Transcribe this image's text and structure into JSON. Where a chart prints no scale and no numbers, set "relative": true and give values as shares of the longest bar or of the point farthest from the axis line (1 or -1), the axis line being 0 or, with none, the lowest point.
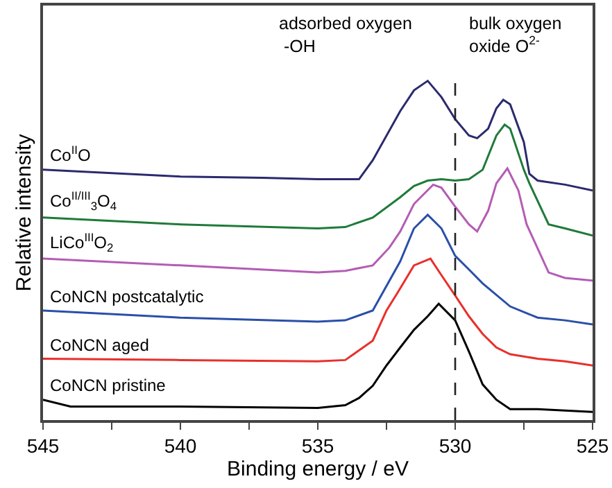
{
  "chart_data": {
    "type": "line",
    "relative": true,
    "xlabel": "Binding energy / eV",
    "ylabel": "Relative intensity",
    "xlim": [
      545,
      525
    ],
    "xticks": [
      545,
      {
        "value": 542.5,
        "label": null
      },
      540,
      {
        "value": 537.5,
        "label": null
      },
      535,
      {
        "value": 532.5,
        "label": null
      },
      530,
      {
        "value": 527.5,
        "label": null
      },
      525
    ],
    "legend": false,
    "marker": "none",
    "line_style": "solid",
    "annotations": [
      "adsorbed oxygen\n -OH",
      "bulk oxygen\noxide O$^{2-}$"
    ],
    "ref_lines": [
      {
        "axis": "x",
        "value": 530,
        "label": null,
        "color": "#222222",
        "line_style": "dashed"
      }
    ],
    "series": [
      {
        "name": "Co$^{II}$O",
        "color": "#2b2a6e",
        "x": [
          545,
          543,
          540,
          537,
          535,
          534,
          533.5,
          533,
          532,
          531.5,
          531,
          530.5,
          530,
          529.5,
          529.2,
          528.8,
          528.5,
          528.25,
          528,
          527.5,
          527.3,
          527,
          526,
          525
        ],
        "values": [
          0.738,
          0.73,
          0.718,
          0.714,
          0.71,
          0.71,
          0.71,
          0.766,
          0.911,
          0.972,
          1.0,
          0.952,
          0.887,
          0.839,
          0.831,
          0.859,
          0.919,
          0.944,
          0.931,
          0.819,
          0.726,
          0.706,
          0.694,
          0.677
        ]
      },
      {
        "name": "Co$^{II/III}$$_{3}$O$_{4}$",
        "color": "#1f7a3a",
        "x": [
          545,
          540,
          535,
          534,
          533,
          532,
          531.5,
          531,
          530.5,
          530,
          529.5,
          529,
          528.5,
          528.2,
          528,
          527.5,
          527.3,
          526.6,
          526,
          525
        ],
        "values": [
          0.597,
          0.577,
          0.565,
          0.569,
          0.597,
          0.657,
          0.69,
          0.706,
          0.71,
          0.706,
          0.71,
          0.738,
          0.839,
          0.871,
          0.859,
          0.738,
          0.698,
          0.577,
          0.565,
          0.544
        ]
      },
      {
        "name": "LiCo$^{III}$O$_{2}$",
        "color": "#b45cb4",
        "x": [
          545,
          540,
          535,
          534,
          533,
          532.4,
          532,
          531.5,
          530.8,
          530.5,
          530,
          529.5,
          529.2,
          528.8,
          528.5,
          528.1,
          527.7,
          527.4,
          527.1,
          526.6,
          526,
          525
        ],
        "values": [
          0.476,
          0.456,
          0.435,
          0.44,
          0.456,
          0.508,
          0.556,
          0.637,
          0.694,
          0.685,
          0.629,
          0.577,
          0.556,
          0.617,
          0.698,
          0.742,
          0.677,
          0.577,
          0.524,
          0.435,
          0.419,
          0.411
        ]
      },
      {
        "name": "CoNCN postcatalytic",
        "color": "#2a4fa8",
        "x": [
          545,
          540,
          535,
          534,
          533,
          532,
          531.5,
          531,
          530.5,
          530,
          529.5,
          529,
          528,
          527,
          526,
          525
        ],
        "values": [
          0.323,
          0.302,
          0.29,
          0.294,
          0.323,
          0.468,
          0.565,
          0.605,
          0.565,
          0.484,
          0.444,
          0.403,
          0.335,
          0.302,
          0.294,
          0.282
        ]
      },
      {
        "name": "CoNCN aged",
        "color": "#e8302a",
        "x": [
          545,
          540,
          535,
          534,
          533,
          532.5,
          532.1,
          531.5,
          530.9,
          530.5,
          530,
          529.5,
          529,
          528.5,
          528,
          527,
          526,
          525
        ],
        "values": [
          0.181,
          0.177,
          0.173,
          0.177,
          0.234,
          0.323,
          0.375,
          0.456,
          0.476,
          0.427,
          0.367,
          0.306,
          0.254,
          0.214,
          0.194,
          0.181,
          0.173,
          0.161
        ]
      },
      {
        "name": "CoNCN pristine",
        "color": "#000000",
        "x": [
          545,
          544,
          540,
          535,
          534,
          533.5,
          533,
          532.5,
          532,
          531.5,
          531,
          530.6,
          530,
          529.5,
          529,
          528.5,
          528,
          527,
          526,
          525
        ],
        "values": [
          0.06,
          0.04,
          0.04,
          0.036,
          0.044,
          0.065,
          0.101,
          0.161,
          0.214,
          0.266,
          0.306,
          0.343,
          0.294,
          0.202,
          0.105,
          0.06,
          0.032,
          0.032,
          0.028,
          0.024
        ]
      }
    ]
  }
}
